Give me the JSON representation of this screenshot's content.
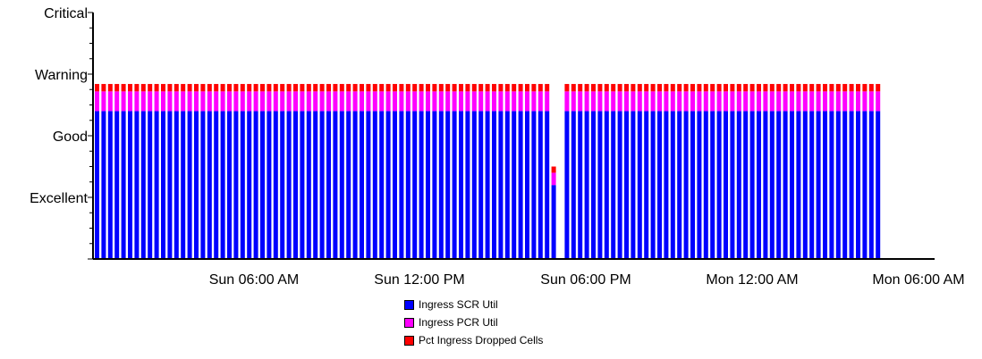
{
  "chart_data": {
    "type": "bar",
    "stacked": true,
    "y_levels": [
      "Excellent",
      "Good",
      "Warning",
      "Critical"
    ],
    "y_range": [
      0,
      4
    ],
    "x_tick_labels": [
      "Sun 06:00 AM",
      "Sun 12:00 PM",
      "Sun 06:00 PM",
      "Mon 12:00 AM",
      "Mon 06:00 AM"
    ],
    "grid": false,
    "legend_position": "bottom-center",
    "series": [
      {
        "name": "Ingress SCR Util",
        "color": "#0000ff"
      },
      {
        "name": "Ingress PCR Util",
        "color": "#ff00ff"
      },
      {
        "name": "Pct Ingress Dropped Cells",
        "color": "#ff0000"
      }
    ],
    "bar_count": 119,
    "bar_values_normal": {
      "scr": 2.4,
      "pcr": 0.32,
      "dropped": 0.12
    },
    "bar_values_exceptions": [
      {
        "index": 69,
        "scr": 1.2,
        "pcr": 0.2,
        "dropped": 0.1
      },
      {
        "index": 70,
        "scr": 0,
        "pcr": 0,
        "dropped": 0
      }
    ]
  }
}
